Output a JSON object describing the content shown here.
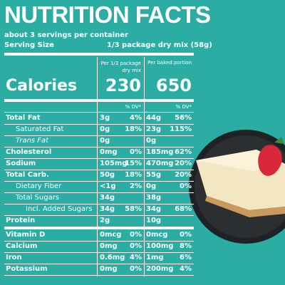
{
  "header": {
    "title": "NUTRITION FACTS",
    "servings": "about 3 servings per container",
    "serving_size_label": "Serving Size",
    "serving_size_value": "1/3 package dry mix (58g)"
  },
  "columns": {
    "mix": "Per 1/3 package dry mix",
    "baked": "Per baked  portion",
    "dv_mix": "% DV*",
    "dv_baked": "% DV*"
  },
  "calories": {
    "label": "Calories",
    "mix": "230",
    "baked": "650"
  },
  "rows": [
    [
      "Total Fat",
      "3g",
      "4%",
      "44g",
      "56%"
    ],
    [
      "Saturated Fat",
      "0g",
      "18%",
      "23g",
      "115%"
    ],
    [
      "Trans Fat",
      "0g",
      null,
      "0g",
      null
    ],
    [
      "Cholesterol",
      "0mg",
      "0%",
      "185mg",
      "62%"
    ],
    [
      "Sodium",
      "105mg",
      "15%",
      "470mg",
      "20%"
    ],
    [
      "Total Carb.",
      "50g",
      "18%",
      "55g",
      "20%"
    ],
    [
      "Dietary Fiber",
      "<1g",
      "2%",
      "0g",
      "0%"
    ],
    [
      "Total Sugars",
      "34g",
      null,
      "38g",
      null
    ],
    [
      "Incl. Added Sugars",
      "34g",
      "58%",
      "34g",
      "68%"
    ],
    [
      "Protein",
      "2g",
      null,
      "10g",
      null
    ],
    [
      "Vitamin D",
      "0mcg",
      "0%",
      "0mcg",
      "0%"
    ],
    [
      "Calcium",
      "0mg",
      "0%",
      "100mg",
      "8%"
    ],
    [
      "Iron",
      "0.6mg",
      "4%",
      "1mg",
      "6%"
    ],
    [
      "Potassium",
      "0mg",
      "0%",
      "200mg",
      "4%"
    ]
  ]
}
